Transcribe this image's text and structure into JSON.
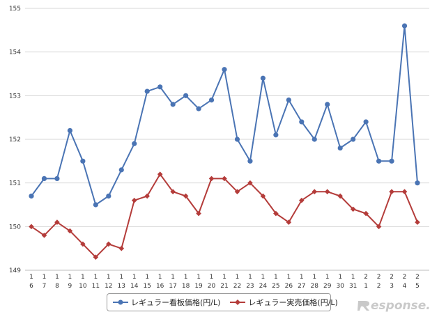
{
  "chart_data": {
    "type": "line",
    "title": "",
    "xlabel": "",
    "ylabel": "",
    "ylim": [
      149,
      155
    ],
    "yticks": [
      "149",
      "150",
      "151",
      "152",
      "153",
      "154",
      "155"
    ],
    "categories": [
      [
        "1",
        "6"
      ],
      [
        "1",
        "7"
      ],
      [
        "1",
        "8"
      ],
      [
        "1",
        "9"
      ],
      [
        "1",
        "10"
      ],
      [
        "1",
        "11"
      ],
      [
        "1",
        "12"
      ],
      [
        "1",
        "13"
      ],
      [
        "1",
        "14"
      ],
      [
        "1",
        "15"
      ],
      [
        "1",
        "16"
      ],
      [
        "1",
        "17"
      ],
      [
        "1",
        "18"
      ],
      [
        "1",
        "19"
      ],
      [
        "1",
        "20"
      ],
      [
        "1",
        "21"
      ],
      [
        "1",
        "22"
      ],
      [
        "1",
        "23"
      ],
      [
        "1",
        "24"
      ],
      [
        "1",
        "25"
      ],
      [
        "1",
        "26"
      ],
      [
        "1",
        "27"
      ],
      [
        "1",
        "28"
      ],
      [
        "1",
        "29"
      ],
      [
        "1",
        "30"
      ],
      [
        "1",
        "31"
      ],
      [
        "2",
        "1"
      ],
      [
        "2",
        "2"
      ],
      [
        "2",
        "3"
      ],
      [
        "2",
        "4"
      ],
      [
        "2",
        "5"
      ]
    ],
    "series": [
      {
        "name": "レギュラー看板価格(円/L)",
        "color": "#4a74b4",
        "marker": "circle",
        "values": [
          150.7,
          151.1,
          151.1,
          152.2,
          151.5,
          150.5,
          150.7,
          151.3,
          151.9,
          153.1,
          153.2,
          152.8,
          153.0,
          152.7,
          152.9,
          153.6,
          152.0,
          151.5,
          153.4,
          152.1,
          152.9,
          152.4,
          152.0,
          152.8,
          151.8,
          152.0,
          152.4,
          151.5,
          151.5,
          154.6,
          151.0
        ]
      },
      {
        "name": "レギュラー実売価格(円/L)",
        "color": "#b43c3a",
        "marker": "diamond",
        "values": [
          150.0,
          149.8,
          150.1,
          149.9,
          149.6,
          149.3,
          149.6,
          149.5,
          150.6,
          150.7,
          151.2,
          150.8,
          150.7,
          150.3,
          151.1,
          151.1,
          150.8,
          151.0,
          150.7,
          150.3,
          150.1,
          150.6,
          150.8,
          150.8,
          150.7,
          150.4,
          150.3,
          150.0,
          150.8,
          150.8,
          150.1
        ]
      }
    ]
  },
  "watermark": {
    "text": "Response."
  }
}
